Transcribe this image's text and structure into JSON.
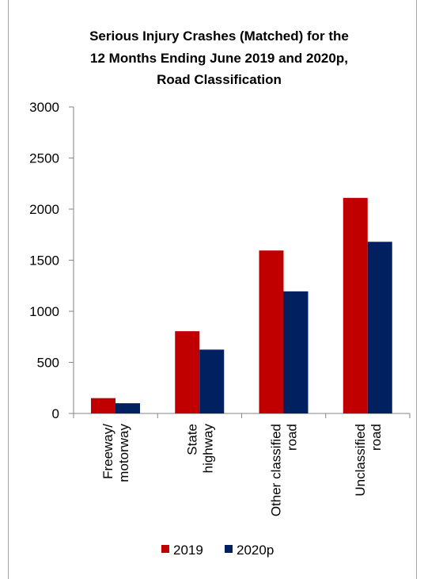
{
  "chart_data": {
    "type": "bar",
    "title_lines": [
      "Serious Injury Crashes (Matched) for the",
      "12 Months Ending June 2019 and 2020p,",
      "Road Classification"
    ],
    "categories": [
      [
        "Freeway/",
        "motorway"
      ],
      [
        "State",
        "highway"
      ],
      [
        "Other classified",
        "road"
      ],
      [
        "Unclassified",
        "road"
      ]
    ],
    "series": [
      {
        "name": "2019",
        "color": "#c00000",
        "values": [
          150,
          805,
          1595,
          2110
        ]
      },
      {
        "name": "2020p",
        "color": "#002060",
        "values": [
          100,
          625,
          1195,
          1680
        ]
      }
    ],
    "ylim": [
      0,
      3000
    ],
    "yticks": [
      0,
      500,
      1000,
      1500,
      2000,
      2500,
      3000
    ],
    "xlabel": "",
    "ylabel": "",
    "grid": false,
    "legend": "bottom"
  }
}
